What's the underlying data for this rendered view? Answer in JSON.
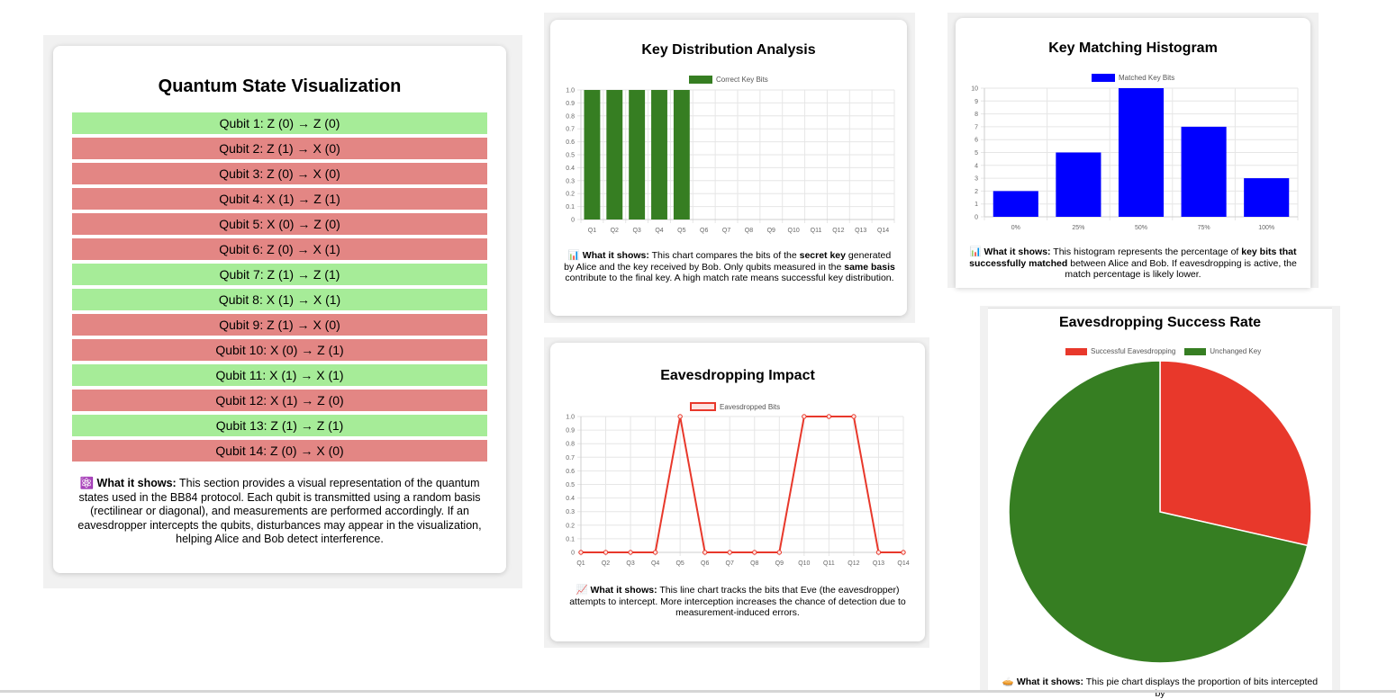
{
  "quantum": {
    "title": "Quantum State Visualization",
    "qubits": [
      {
        "label": "Qubit 1: Z (0) → Z (0)",
        "match": true
      },
      {
        "label": "Qubit 2: Z (1) → X (0)",
        "match": false
      },
      {
        "label": "Qubit 3: Z (0) → X (0)",
        "match": false
      },
      {
        "label": "Qubit 4: X (1) → Z (1)",
        "match": false
      },
      {
        "label": "Qubit 5: X (0) → Z (0)",
        "match": false
      },
      {
        "label": "Qubit 6: Z (0) → X (1)",
        "match": false
      },
      {
        "label": "Qubit 7: Z (1) → Z (1)",
        "match": true
      },
      {
        "label": "Qubit 8: X (1) → X (1)",
        "match": true
      },
      {
        "label": "Qubit 9: Z (1) → X (0)",
        "match": false
      },
      {
        "label": "Qubit 10: X (0) → Z (1)",
        "match": false
      },
      {
        "label": "Qubit 11: X (1) → X (1)",
        "match": true
      },
      {
        "label": "Qubit 12: X (1) → Z (0)",
        "match": false
      },
      {
        "label": "Qubit 13: Z (1) → Z (1)",
        "match": true
      },
      {
        "label": "Qubit 14: Z (0) → X (0)",
        "match": false
      }
    ],
    "colors": {
      "match": "#a6ec98",
      "mismatch": "#e38684"
    },
    "desc": {
      "icon": "⚛️",
      "lead": "What it shows:",
      "text": "This section provides a visual representation of the quantum states used in the BB84 protocol. Each qubit is transmitted using a random basis (rectilinear or diagonal), and measurements are performed accordingly. If an eavesdropper intercepts the qubits, disturbances may appear in the visualization, helping Alice and Bob detect interference."
    }
  },
  "chart_data": [
    {
      "id": "key-distribution",
      "type": "bar",
      "title": "Key Distribution Analysis",
      "categories": [
        "Q1",
        "Q2",
        "Q3",
        "Q4",
        "Q5",
        "Q6",
        "Q7",
        "Q8",
        "Q9",
        "Q10",
        "Q11",
        "Q12",
        "Q13",
        "Q14"
      ],
      "series": [
        {
          "name": "Correct Key Bits",
          "color": "#367e22",
          "values": [
            1,
            1,
            1,
            1,
            1,
            0,
            0,
            0,
            0,
            0,
            0,
            0,
            0,
            0
          ]
        }
      ],
      "ylim": [
        0,
        1
      ],
      "yticks": [
        "0",
        "0.1",
        "0.2",
        "0.3",
        "0.4",
        "0.5",
        "0.6",
        "0.7",
        "0.8",
        "0.9",
        "1.0"
      ],
      "legend": "top",
      "desc": {
        "icon": "📊",
        "lead": "What it shows:",
        "p1": "This chart compares the bits of the",
        "b1": "secret key",
        "p2": "generated by Alice and the key received by Bob. Only qubits measured in the",
        "b2": "same basis",
        "p3": "contribute to the final key. A high match rate means successful key distribution."
      }
    },
    {
      "id": "key-matching",
      "type": "bar",
      "title": "Key Matching Histogram",
      "categories": [
        "0%",
        "25%",
        "50%",
        "75%",
        "100%"
      ],
      "series": [
        {
          "name": "Matched Key Bits",
          "color": "#0000ff",
          "values": [
            2,
            5,
            10,
            7,
            3
          ]
        }
      ],
      "ylim": [
        0,
        10
      ],
      "yticks": [
        "0",
        "1",
        "2",
        "3",
        "4",
        "5",
        "6",
        "7",
        "8",
        "9",
        "10"
      ],
      "legend": "top",
      "desc": {
        "icon": "📊",
        "lead": "What it shows:",
        "p1": "This histogram represents the percentage of",
        "b1": "key bits that successfully matched",
        "p2": "between Alice and Bob. If eavesdropping is active, the match percentage is likely lower."
      }
    },
    {
      "id": "eavesdropping-impact",
      "type": "line",
      "title": "Eavesdropping Impact",
      "categories": [
        "Q1",
        "Q2",
        "Q3",
        "Q4",
        "Q5",
        "Q6",
        "Q7",
        "Q8",
        "Q9",
        "Q10",
        "Q11",
        "Q12",
        "Q13",
        "Q14"
      ],
      "series": [
        {
          "name": "Eavesdropped Bits",
          "color": "#e8382b",
          "values": [
            0,
            0,
            0,
            0,
            1,
            0,
            0,
            0,
            0,
            1,
            1,
            1,
            0,
            0
          ]
        }
      ],
      "ylim": [
        0,
        1
      ],
      "yticks": [
        "0",
        "0.1",
        "0.2",
        "0.3",
        "0.4",
        "0.5",
        "0.6",
        "0.7",
        "0.8",
        "0.9",
        "1.0"
      ],
      "legend": "top",
      "desc": {
        "icon": "📈",
        "lead": "What it shows:",
        "text": "This line chart tracks the bits that Eve (the eavesdropper) attempts to intercept. More interception increases the chance of detection due to measurement-induced errors."
      }
    },
    {
      "id": "eavesdropping-success",
      "type": "pie",
      "title": "Eavesdropping Success Rate",
      "labels": [
        "Successful Eavesdropping",
        "Unchanged Key"
      ],
      "values": [
        4,
        10
      ],
      "colors": [
        "#e8382b",
        "#367e22"
      ],
      "legend": "top",
      "desc": {
        "icon": "🥧",
        "lead": "What it shows:",
        "text": "This pie chart displays the proportion of bits intercepted by"
      }
    }
  ]
}
